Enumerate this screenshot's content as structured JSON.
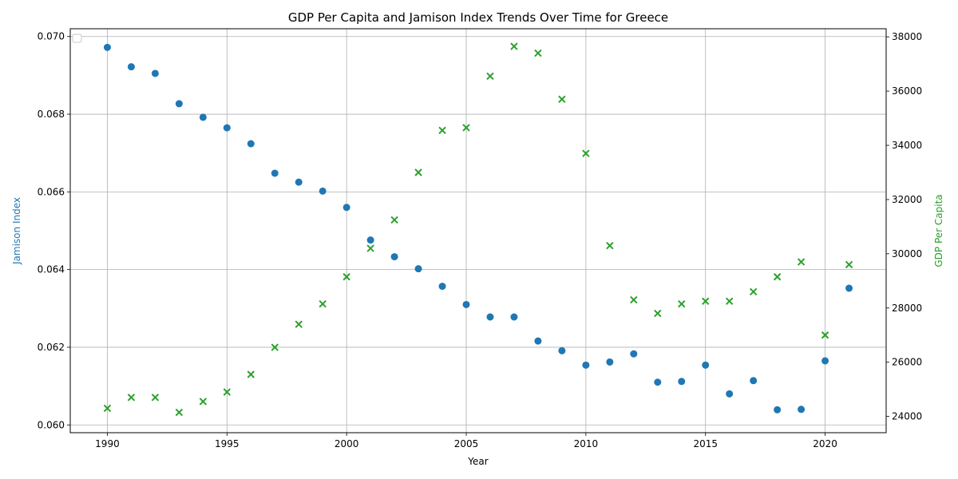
{
  "chart_data": {
    "type": "scatter",
    "title": "GDP Per Capita and Jamison Index Trends Over Time for Greece",
    "xlabel": "Year",
    "ylabel_left": "Jamison Index",
    "ylabel_right": "GDP Per Capita",
    "xlim": [
      1988.45,
      2022.55
    ],
    "ylim_left": [
      0.0598,
      0.0702
    ],
    "ylim_right": [
      23400,
      38300
    ],
    "xticks": [
      1990,
      1995,
      2000,
      2005,
      2010,
      2015,
      2020
    ],
    "yticks_left": [
      "0.060",
      "0.062",
      "0.064",
      "0.066",
      "0.068",
      "0.070"
    ],
    "yticks_right": [
      "24000",
      "26000",
      "28000",
      "30000",
      "32000",
      "34000",
      "36000",
      "38000"
    ],
    "grid": true,
    "legend": "top-left (empty)",
    "colors": {
      "left": "#1f77b4",
      "right": "#2ca02c"
    },
    "x": [
      1990,
      1991,
      1992,
      1993,
      1994,
      1995,
      1996,
      1997,
      1998,
      1999,
      2000,
      2001,
      2002,
      2003,
      2004,
      2005,
      2006,
      2007,
      2008,
      2009,
      2010,
      2011,
      2012,
      2013,
      2014,
      2015,
      2016,
      2017,
      2018,
      2019,
      2020,
      2021
    ],
    "series": [
      {
        "name": "Jamison Index",
        "axis": "left",
        "marker": "circle",
        "values": [
          0.06972,
          0.06922,
          0.06905,
          0.06827,
          0.06792,
          0.06765,
          0.06724,
          0.06648,
          0.06625,
          0.06602,
          0.0656,
          0.06476,
          0.06433,
          0.06402,
          0.06357,
          0.0631,
          0.06278,
          0.06278,
          0.06216,
          0.06191,
          0.06154,
          0.06162,
          0.06183,
          0.0611,
          0.06112,
          0.06154,
          0.0608,
          0.06114,
          0.06039,
          0.0604,
          0.06165,
          0.06352
        ]
      },
      {
        "name": "GDP Per Capita",
        "axis": "right",
        "marker": "x",
        "values": [
          24300,
          24700,
          24700,
          24150,
          24550,
          24900,
          25550,
          26550,
          27400,
          28150,
          29150,
          30200,
          31250,
          33000,
          34550,
          34650,
          36550,
          37650,
          37400,
          35700,
          33700,
          30300,
          28300,
          27800,
          28150,
          28250,
          28250,
          28600,
          29150,
          29700,
          27000,
          29600
        ]
      }
    ]
  }
}
